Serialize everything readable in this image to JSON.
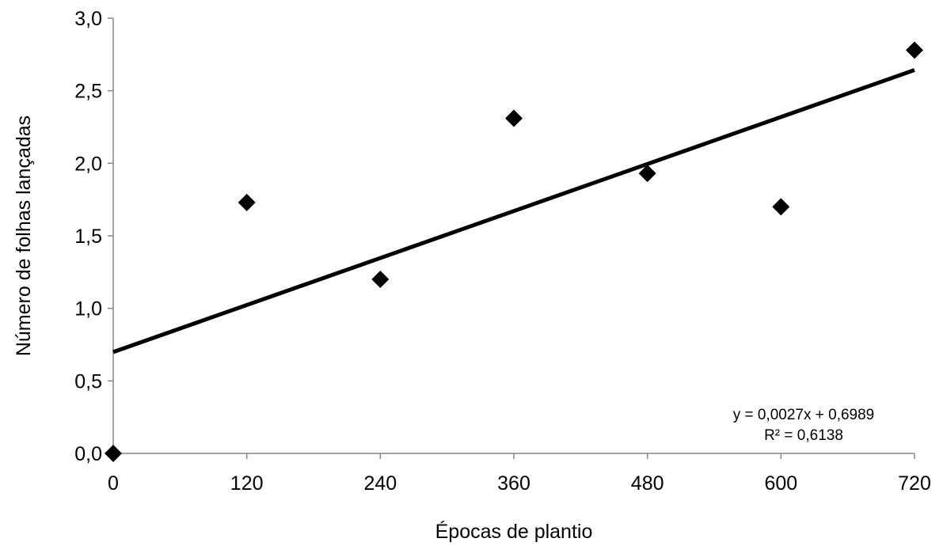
{
  "chart_data": {
    "type": "scatter",
    "title": "",
    "xlabel": "Épocas de plantio",
    "ylabel": "Número de folhas lançadas",
    "xlim": [
      0,
      720
    ],
    "ylim": [
      0,
      3
    ],
    "x_ticks": [
      "0",
      "120",
      "240",
      "360",
      "480",
      "600",
      "720"
    ],
    "y_ticks": [
      "0,0",
      "0,5",
      "1,0",
      "1,5",
      "2,0",
      "2,5",
      "3,0"
    ],
    "grid": false,
    "legend": "none",
    "marker": "diamond",
    "marker_color": "#000000",
    "series": [
      {
        "points": [
          {
            "x": 0,
            "y": 0.0
          },
          {
            "x": 120,
            "y": 1.73
          },
          {
            "x": 240,
            "y": 1.2
          },
          {
            "x": 360,
            "y": 2.31
          },
          {
            "x": 480,
            "y": 1.93
          },
          {
            "x": 600,
            "y": 1.7
          },
          {
            "x": 720,
            "y": 2.78
          }
        ]
      }
    ],
    "trendline": {
      "slope": 0.0027,
      "intercept": 0.6989,
      "color": "#000000",
      "equation": "y = 0,0027x + 0,6989",
      "r_squared": "R² = 0,6138"
    }
  }
}
